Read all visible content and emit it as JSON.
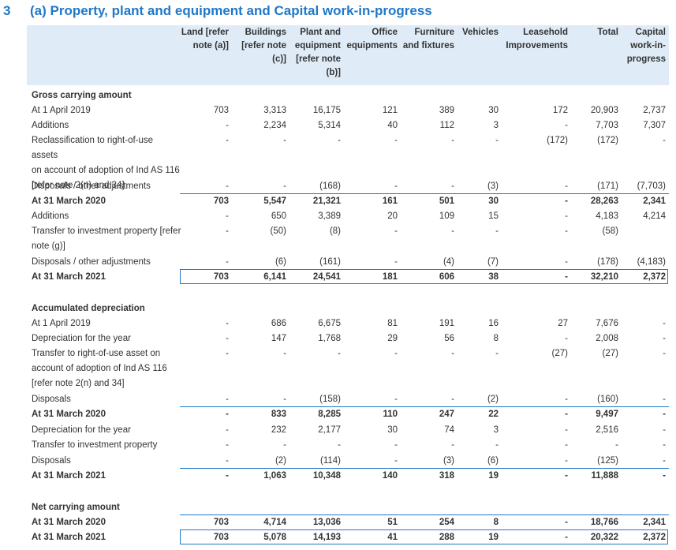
{
  "title": {
    "number": "3",
    "text": "(a) Property, plant and equipment and Capital work-in-progress"
  },
  "columns": [
    [
      "Land [refer",
      "note (a)]"
    ],
    [
      "Buildings",
      "[refer note",
      "(c)]"
    ],
    [
      "Plant and",
      "equipment",
      "[refer note",
      "(b)]"
    ],
    [
      "Office",
      "equipments"
    ],
    [
      "Furniture",
      "and fixtures"
    ],
    [
      "Vehicles"
    ],
    [
      "Leasehold",
      "Improvements"
    ],
    [
      "Total"
    ],
    [
      "Capital",
      "work-in-",
      "progress"
    ]
  ],
  "sections": {
    "gross": "Gross carrying amount",
    "depr": "Accumulated depreciation",
    "net": "Net carrying amount"
  },
  "multiline_labels": {
    "reclass_gross": [
      "Reclassification to right-of-use assets",
      "on account of adoption of Ind AS 116",
      "[refer note 2(n) and 34]"
    ],
    "transfer_invest_gross": [
      "Transfer to investment property [refer",
      "note (g)]"
    ],
    "transfer_rou_depr": [
      "Transfer to right-of-use asset on",
      "account of adoption of Ind AS 116",
      "[refer note 2(n) and 34]"
    ]
  },
  "rows": {
    "g_open": {
      "label": "At 1 April 2019",
      "values": [
        "703",
        "3,313",
        "16,175",
        "121",
        "389",
        "30",
        "172",
        "20,903",
        "2,737"
      ]
    },
    "g_add19": {
      "label": "Additions",
      "values": [
        "-",
        "2,234",
        "5,314",
        "40",
        "112",
        "3",
        "-",
        "7,703",
        "7,307"
      ]
    },
    "g_reclass": {
      "values": [
        "-",
        "-",
        "-",
        "-",
        "-",
        "-",
        "(172)",
        "(172)",
        "-"
      ]
    },
    "g_disp20": {
      "label": "Disposals / other adjustments",
      "values": [
        "-",
        "-",
        "(168)",
        "-",
        "-",
        "(3)",
        "-",
        "(171)",
        "(7,703)"
      ]
    },
    "g_2020": {
      "label": "At 31 March 2020",
      "values": [
        "703",
        "5,547",
        "21,321",
        "161",
        "501",
        "30",
        "-",
        "28,263",
        "2,341"
      ]
    },
    "g_add21": {
      "label": "Additions",
      "values": [
        "-",
        "650",
        "3,389",
        "20",
        "109",
        "15",
        "-",
        "4,183",
        "4,214"
      ]
    },
    "g_transfer": {
      "values": [
        "-",
        "(50)",
        "(8)",
        "-",
        "-",
        "-",
        "-",
        "(58)",
        ""
      ]
    },
    "g_disp21": {
      "label": "Disposals / other adjustments",
      "values": [
        "-",
        "(6)",
        "(161)",
        "-",
        "(4)",
        "(7)",
        "-",
        "(178)",
        "(4,183)"
      ]
    },
    "g_2021": {
      "label": "At 31 March 2021",
      "values": [
        "703",
        "6,141",
        "24,541",
        "181",
        "606",
        "38",
        "-",
        "32,210",
        "2,372"
      ]
    },
    "d_open": {
      "label": "At 1 April 2019",
      "values": [
        "-",
        "686",
        "6,675",
        "81",
        "191",
        "16",
        "27",
        "7,676",
        "-"
      ]
    },
    "d_dep20": {
      "label": "Depreciation for the year",
      "values": [
        "-",
        "147",
        "1,768",
        "29",
        "56",
        "8",
        "-",
        "2,008",
        "-"
      ]
    },
    "d_transfer": {
      "values": [
        "-",
        "-",
        "-",
        "-",
        "-",
        "-",
        "(27)",
        "(27)",
        "-"
      ]
    },
    "d_disp20": {
      "label": "Disposals",
      "values": [
        "-",
        "-",
        "(158)",
        "-",
        "-",
        "(2)",
        "-",
        "(160)",
        "-"
      ]
    },
    "d_2020": {
      "label": "At 31 March 2020",
      "values": [
        "-",
        "833",
        "8,285",
        "110",
        "247",
        "22",
        "-",
        "9,497",
        "-"
      ]
    },
    "d_dep21": {
      "label": "Depreciation for the year",
      "values": [
        "-",
        "232",
        "2,177",
        "30",
        "74",
        "3",
        "-",
        "2,516",
        "-"
      ]
    },
    "d_transfer_inv": {
      "label": "Transfer to investment property",
      "values": [
        "-",
        "-",
        "-",
        "-",
        "-",
        "-",
        "-",
        "-",
        "-"
      ]
    },
    "d_disp21": {
      "label": "Disposals",
      "values": [
        "-",
        "(2)",
        "(114)",
        "-",
        "(3)",
        "(6)",
        "-",
        "(125)",
        "-"
      ]
    },
    "d_2021": {
      "label": "At 31 March 2021",
      "values": [
        "-",
        "1,063",
        "10,348",
        "140",
        "318",
        "19",
        "-",
        "11,888",
        "-"
      ]
    },
    "n_2020": {
      "label": "At 31 March 2020",
      "values": [
        "703",
        "4,714",
        "13,036",
        "51",
        "254",
        "8",
        "-",
        "18,766",
        "2,341"
      ]
    },
    "n_2021": {
      "label": "At 31 March 2021",
      "values": [
        "703",
        "5,078",
        "14,193",
        "41",
        "288",
        "19",
        "-",
        "20,322",
        "2,372"
      ]
    }
  },
  "colors": {
    "accent": "#1f78c8",
    "header_bg": "#dfecf8",
    "text": "#333333"
  }
}
